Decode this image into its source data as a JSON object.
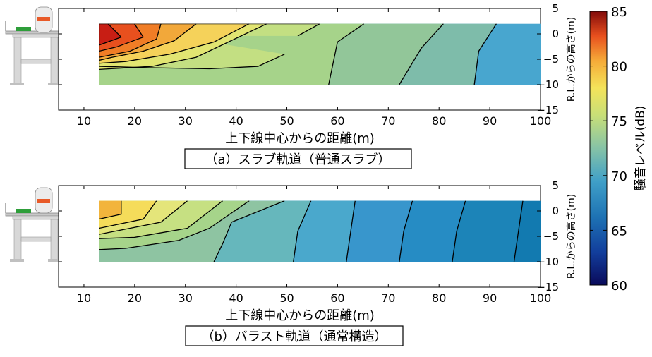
{
  "chart_data": [
    {
      "type": "heatmap",
      "panel_label": "（a）スラブ軌道（普通スラブ）",
      "xlabel": "上下線中心からの距離(m)",
      "ylabel": "R.L.からの高さ(m)",
      "xlim": [
        5,
        100
      ],
      "ylim": [
        -15,
        5
      ],
      "x_ticks": [
        "10",
        "20",
        "30",
        "40",
        "50",
        "60",
        "70",
        "80",
        "90",
        "100"
      ],
      "y_ticks": [
        "5",
        "0",
        "−5",
        "−10",
        "−15"
      ],
      "data_region": {
        "x": [
          13,
          100
        ],
        "y": [
          -10,
          2
        ]
      },
      "bands": [
        {
          "level": 84,
          "color": "#c81e14"
        },
        {
          "level": 82,
          "color": "#e8501e"
        },
        {
          "level": 80,
          "color": "#f07d26"
        },
        {
          "level": 78,
          "color": "#f2a83a"
        },
        {
          "level": 76,
          "color": "#f5d25a"
        },
        {
          "level": 75,
          "color": "#e2e572"
        },
        {
          "level": 74,
          "color": "#c3df82"
        },
        {
          "level": 73,
          "color": "#a6d38a"
        },
        {
          "level": 72,
          "color": "#92c699"
        },
        {
          "level": 71,
          "color": "#7ebcaa"
        },
        {
          "level": 70,
          "color": "#62b3bc"
        },
        {
          "level": 69,
          "color": "#48a6cf"
        }
      ]
    },
    {
      "type": "heatmap",
      "panel_label": "（b）バラスト軌道（通常構造）",
      "xlabel": "上下線中心からの距離(m)",
      "ylabel": "R.L.からの高さ(m)",
      "xlim": [
        5,
        100
      ],
      "ylim": [
        -15,
        5
      ],
      "x_ticks": [
        "10",
        "20",
        "30",
        "40",
        "50",
        "60",
        "70",
        "80",
        "90",
        "100"
      ],
      "y_ticks": [
        "5",
        "0",
        "−5",
        "−10",
        "−15"
      ],
      "data_region": {
        "x": [
          13,
          100
        ],
        "y": [
          -10,
          2
        ]
      },
      "bands": [
        {
          "level": 78,
          "color": "#f2b43c"
        },
        {
          "level": 76,
          "color": "#f5dc5a"
        },
        {
          "level": 75,
          "color": "#e4e57a"
        },
        {
          "level": 74,
          "color": "#c6e082"
        },
        {
          "level": 73,
          "color": "#a6d48a"
        },
        {
          "level": 72,
          "color": "#8ec4a2"
        },
        {
          "level": 70,
          "color": "#66b7bc"
        },
        {
          "level": 69,
          "color": "#4aa8cc"
        },
        {
          "level": 68,
          "color": "#3896cc"
        },
        {
          "level": 67,
          "color": "#268cc4"
        },
        {
          "level": 66,
          "color": "#1c84b8"
        },
        {
          "level": 65,
          "color": "#127ab0"
        }
      ]
    }
  ],
  "colorbar": {
    "label": "騒音レベル(dB)",
    "min": 60,
    "max": 85,
    "ticks": [
      "85",
      "80",
      "75",
      "70",
      "65",
      "60"
    ]
  }
}
